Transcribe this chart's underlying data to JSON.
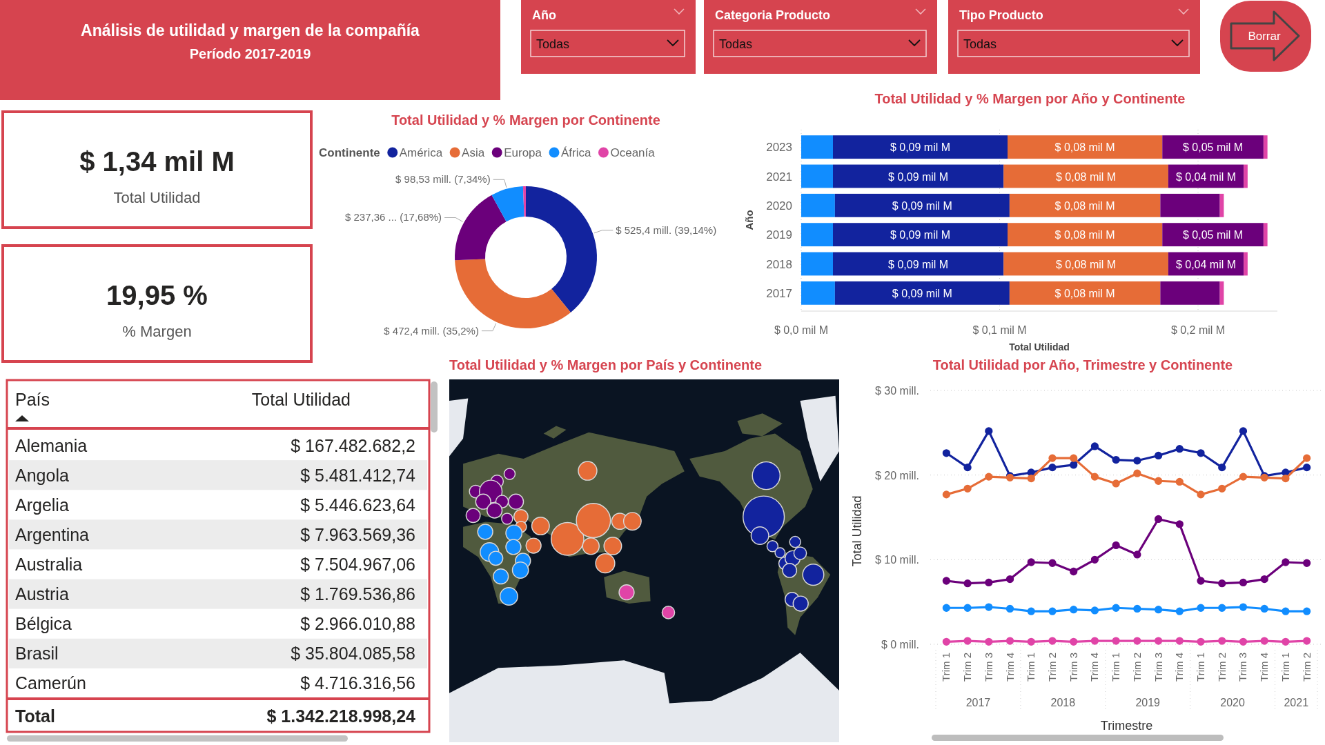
{
  "chart_data": [
    {
      "type": "other",
      "title": "Análisis de utilidad y margen de la compañía",
      "subtitle": "Período 2017-2019"
    },
    {
      "type": "other",
      "title": "Año",
      "annotations": [
        "Todas"
      ]
    },
    {
      "type": "other",
      "title": "Categoria Producto",
      "annotations": [
        "Todas"
      ]
    },
    {
      "type": "other",
      "title": "Tipo Producto",
      "annotations": [
        "Todas"
      ]
    },
    {
      "type": "other",
      "annotations": [
        "Borrar"
      ]
    },
    {
      "type": "other",
      "annotations": [
        "$ 1,34 mil M",
        "Total Utilidad"
      ]
    },
    {
      "type": "other",
      "annotations": [
        "19,95 %",
        "% Margen"
      ]
    },
    {
      "type": "donut",
      "title": "Total Utilidad y % Margen por Continente",
      "legend_title": "Continente",
      "legend": "top left",
      "categories": [
        "América",
        "Asia",
        "Europa",
        "África",
        "Oceanía"
      ],
      "values": [
        525.4,
        472.4,
        237.36,
        98.53,
        8.6
      ],
      "value_labels": [
        "$ 525,4 mill. (39,14%)",
        "$ 472,4 mill. (35,2%)",
        "$ 237,36 ... (17,68%)",
        "$ 98,53 mill. (7,34%)",
        null
      ],
      "colors": [
        "#12239e",
        "#e66c37",
        "#6b007b",
        "#118dff",
        "#e044a7"
      ]
    },
    {
      "type": "bar",
      "orientation": "horizontal",
      "stacked": true,
      "title": "Total Utilidad y % Margen por Año y Continente",
      "xlabel": "Total Utilidad",
      "ylabel": "Año",
      "categories": [
        "2023",
        "2021",
        "2020",
        "2019",
        "2018",
        "2017"
      ],
      "series": [
        {
          "color": "#118dff",
          "values": [
            0.016,
            0.016,
            0.017,
            0.016,
            0.016,
            0.017
          ]
        },
        {
          "color": "#12239e",
          "values": [
            0.088,
            0.086,
            0.088,
            0.088,
            0.086,
            0.088
          ],
          "value_labels": [
            "$ 0,09 mil M",
            "$ 0,09 mil M",
            "$ 0,09 mil M",
            "$ 0,09 mil M",
            "$ 0,09 mil M",
            "$ 0,09 mil M"
          ]
        },
        {
          "color": "#e66c37",
          "values": [
            0.078,
            0.083,
            0.076,
            0.078,
            0.083,
            0.076
          ],
          "value_labels": [
            "$ 0,08 mil M",
            "$ 0,08 mil M",
            "$ 0,08 mil M",
            "$ 0,08 mil M",
            "$ 0,08 mil M",
            "$ 0,08 mil M"
          ]
        },
        {
          "color": "#6b007b",
          "values": [
            0.051,
            0.038,
            0.03,
            0.051,
            0.038,
            0.03
          ],
          "value_labels": [
            "$ 0,05 mil M",
            "$ 0,04 mil M",
            null,
            "$ 0,05 mil M",
            "$ 0,04 mil M",
            null
          ]
        },
        {
          "color": "#e044a7",
          "values": [
            0.002,
            0.002,
            0.002,
            0.002,
            0.002,
            0.002
          ]
        }
      ],
      "xlim": [
        0,
        0.24
      ],
      "xticks": [
        {
          "value": 0,
          "label": "$ 0,0 mil M"
        },
        {
          "value": 0.1,
          "label": "$ 0,1 mil M"
        },
        {
          "value": 0.2,
          "label": "$ 0,2 mil M"
        }
      ],
      "grid": "x"
    },
    {
      "type": "other",
      "categories": [
        "Alemania",
        "Angola",
        "Argelia",
        "Argentina",
        "Australia",
        "Austria",
        "Bélgica",
        "Brasil",
        "Camerún"
      ],
      "values": [
        167482682.2,
        5481412.74,
        5446623.64,
        7963569.36,
        7504967.06,
        1769536.86,
        2966010.88,
        35804085.58,
        4716316.56
      ],
      "value_labels": [
        "$ 167.482.682,2",
        "$ 5.481.412,74",
        "$ 5.446.623,64",
        "$ 7.963.569,36",
        "$ 7.504.967,06",
        "$ 1.769.536,86",
        "$ 2.966.010,88",
        "$ 35.804.085,58",
        "$ 4.716.316,56"
      ],
      "annotations": [
        "País",
        "Total Utilidad",
        "Total",
        "$ 1.342.218.998,24"
      ]
    },
    {
      "type": "other",
      "title": "Total Utilidad y % Margen por País y Continente"
    },
    {
      "type": "line",
      "title": "Total Utilidad por Año, Trimestre y Continente",
      "xlabel": "Trimestre",
      "ylabel": "Total Utilidad",
      "categories": [
        "Trim 1",
        "Trim 2",
        "Trim 3",
        "Trim 4",
        "Trim 1",
        "Trim 2",
        "Trim 3",
        "Trim 4",
        "Trim 1",
        "Trim 2",
        "Trim 3",
        "Trim 4",
        "Trim 1",
        "Trim 2",
        "Trim 3",
        "Trim 4",
        "Trim 1",
        "Trim 2"
      ],
      "annotations": [
        "2017",
        "2018",
        "2019",
        "2020",
        "2021"
      ],
      "series": [
        {
          "color": "#12239e",
          "values": [
            22.6,
            20.9,
            25.2,
            19.9,
            20.3,
            20.9,
            21.2,
            23.4,
            21.8,
            21.7,
            22.3,
            23.1,
            22.6,
            20.9,
            25.2,
            19.9,
            20.3,
            20.9
          ]
        },
        {
          "color": "#e66c37",
          "values": [
            17.7,
            18.4,
            19.8,
            19.7,
            19.6,
            22.0,
            22.0,
            19.8,
            19.0,
            20.2,
            19.3,
            19.2,
            17.7,
            18.4,
            19.8,
            19.7,
            19.6,
            22.0
          ]
        },
        {
          "color": "#6b007b",
          "values": [
            7.5,
            7.2,
            7.3,
            7.7,
            9.7,
            9.6,
            8.6,
            10.0,
            11.7,
            10.6,
            14.8,
            14.2,
            7.5,
            7.2,
            7.3,
            7.7,
            9.7,
            9.6
          ]
        },
        {
          "color": "#118dff",
          "values": [
            4.3,
            4.3,
            4.4,
            4.2,
            3.9,
            3.9,
            4.1,
            4.0,
            4.3,
            4.2,
            4.1,
            3.9,
            4.3,
            4.3,
            4.4,
            4.2,
            3.9,
            3.9
          ]
        },
        {
          "color": "#e044a7",
          "values": [
            0.3,
            0.4,
            0.3,
            0.4,
            0.3,
            0.4,
            0.3,
            0.4,
            0.4,
            0.4,
            0.4,
            0.4,
            0.3,
            0.4,
            0.3,
            0.4,
            0.3,
            0.4
          ]
        }
      ],
      "ylim": [
        0,
        30
      ],
      "yticks": [
        {
          "value": 0,
          "label": "$ 0 mill."
        },
        {
          "value": 10,
          "label": "$ 10 mill."
        },
        {
          "value": 20,
          "label": "$ 20 mill."
        },
        {
          "value": 30,
          "label": "$ 30 mill."
        }
      ],
      "grid": "y",
      "marker": "circle"
    }
  ]
}
